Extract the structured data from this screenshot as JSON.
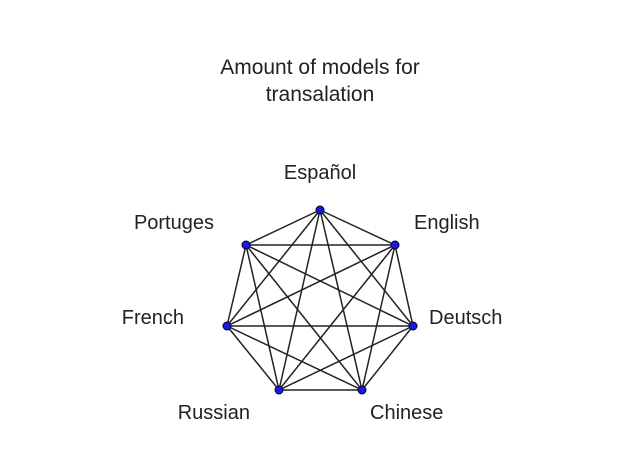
{
  "title": {
    "line1": "Amount of models for",
    "line2": "transalation"
  },
  "graph": {
    "type": "complete-graph",
    "node_color": "#1a1adb",
    "node_outline": "#000033",
    "edge_color": "#222222",
    "nodes": [
      {
        "id": "espanol",
        "label": "Español"
      },
      {
        "id": "english",
        "label": "English"
      },
      {
        "id": "deutsch",
        "label": "Deutsch"
      },
      {
        "id": "chinese",
        "label": "Chinese"
      },
      {
        "id": "russian",
        "label": "Russian"
      },
      {
        "id": "french",
        "label": "French"
      },
      {
        "id": "portuges",
        "label": "Portuges"
      }
    ]
  }
}
